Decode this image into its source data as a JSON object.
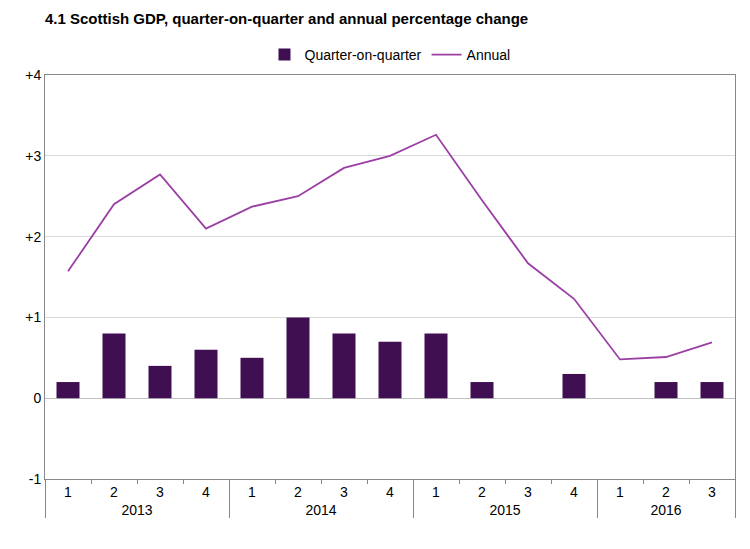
{
  "chart_data": {
    "type": "bar",
    "title": "4.1 Scottish GDP, quarter-on-quarter and annual percentage change",
    "categories": [
      [
        "2013",
        "1"
      ],
      [
        "2013",
        "2"
      ],
      [
        "2013",
        "3"
      ],
      [
        "2013",
        "4"
      ],
      [
        "2014",
        "1"
      ],
      [
        "2014",
        "2"
      ],
      [
        "2014",
        "3"
      ],
      [
        "2014",
        "4"
      ],
      [
        "2015",
        "1"
      ],
      [
        "2015",
        "2"
      ],
      [
        "2015",
        "3"
      ],
      [
        "2015",
        "4"
      ],
      [
        "2016",
        "1"
      ],
      [
        "2016",
        "2"
      ],
      [
        "2016",
        "3"
      ]
    ],
    "series": [
      {
        "name": "Quarter-on-quarter",
        "type": "bar",
        "color": "#3f0f52",
        "values": [
          0.2,
          0.8,
          0.4,
          0.6,
          0.5,
          1.0,
          0.8,
          0.7,
          0.8,
          0.2,
          0.0,
          0.3,
          0.0,
          0.2,
          0.2
        ]
      },
      {
        "name": "Annual",
        "type": "line",
        "color": "#9b3fa5",
        "values": [
          1.57,
          2.4,
          2.77,
          2.1,
          2.37,
          2.5,
          2.85,
          3.0,
          3.26,
          2.45,
          1.67,
          1.23,
          0.48,
          0.51,
          0.69
        ]
      }
    ],
    "ylim": [
      -1,
      4
    ],
    "yticks": [
      -1,
      0,
      {
        "value": 1,
        "label": "+1"
      },
      {
        "value": 2,
        "label": "+2"
      },
      {
        "value": 3,
        "label": "+3"
      },
      {
        "value": 4,
        "label": "+4"
      }
    ],
    "grid": true,
    "legend": "top"
  }
}
